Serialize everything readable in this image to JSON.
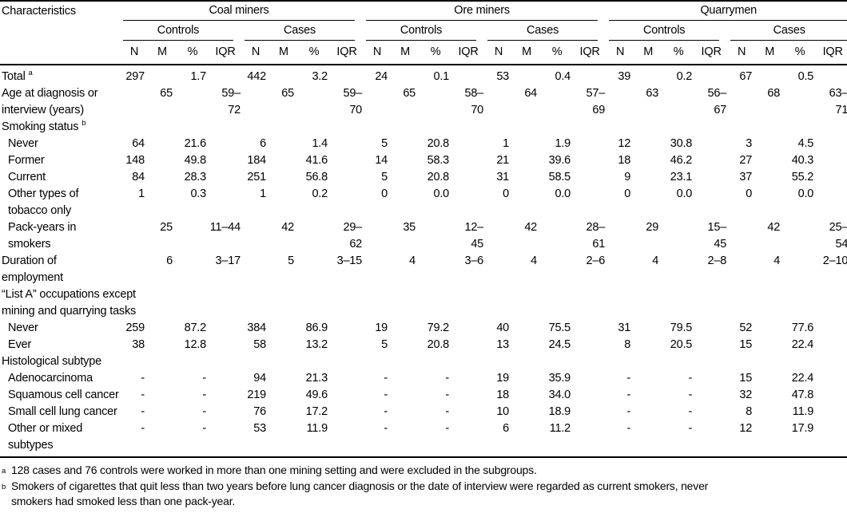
{
  "table": {
    "char_header": "Characteristics",
    "groups": [
      {
        "label": "Coal miners"
      },
      {
        "label": "Ore miners"
      },
      {
        "label": "Quarrymen"
      }
    ],
    "subgroups": [
      "Controls",
      "Cases"
    ],
    "stat_cols": [
      "N",
      "M",
      "%",
      "IQR"
    ],
    "rows": [
      {
        "label": "Total",
        "sup": "a",
        "indent": false,
        "section": false,
        "cells": [
          "297",
          "",
          "1.7",
          "",
          "442",
          "",
          "3.2",
          "",
          "24",
          "",
          "0.1",
          "",
          "53",
          "",
          "0.4",
          "",
          "39",
          "",
          "0.2",
          "",
          "67",
          "",
          "0.5",
          ""
        ]
      },
      {
        "label": "Age at diagnosis or\ninterview (years)",
        "indent": false,
        "section": false,
        "cells": [
          "",
          "65",
          "",
          "59–72",
          "",
          "65",
          "",
          "59–70",
          "",
          "65",
          "",
          "58–70",
          "",
          "64",
          "",
          "57–69",
          "",
          "63",
          "",
          "56–67",
          "",
          "68",
          "",
          "63–71"
        ]
      },
      {
        "label": "Smoking status",
        "sup": "b",
        "indent": false,
        "section": true,
        "cells": []
      },
      {
        "label": "Never",
        "indent": true,
        "section": false,
        "cells": [
          "64",
          "",
          "21.6",
          "",
          "6",
          "",
          "1.4",
          "",
          "5",
          "",
          "20.8",
          "",
          "1",
          "",
          "1.9",
          "",
          "12",
          "",
          "30.8",
          "",
          "3",
          "",
          "4.5",
          ""
        ]
      },
      {
        "label": "Former",
        "indent": true,
        "section": false,
        "cells": [
          "148",
          "",
          "49.8",
          "",
          "184",
          "",
          "41.6",
          "",
          "14",
          "",
          "58.3",
          "",
          "21",
          "",
          "39.6",
          "",
          "18",
          "",
          "46.2",
          "",
          "27",
          "",
          "40.3",
          ""
        ]
      },
      {
        "label": "Current",
        "indent": true,
        "section": false,
        "cells": [
          "84",
          "",
          "28.3",
          "",
          "251",
          "",
          "56.8",
          "",
          "5",
          "",
          "20.8",
          "",
          "31",
          "",
          "58.5",
          "",
          "9",
          "",
          "23.1",
          "",
          "37",
          "",
          "55.2",
          ""
        ]
      },
      {
        "label": "Other types of\ntobacco only",
        "indent": true,
        "section": false,
        "cells": [
          "1",
          "",
          "0.3",
          "",
          "1",
          "",
          "0.2",
          "",
          "0",
          "",
          "0.0",
          "",
          "0",
          "",
          "0.0",
          "",
          "0",
          "",
          "0.0",
          "",
          "0",
          "",
          "0.0",
          ""
        ]
      },
      {
        "label": "Pack-years in\nsmokers",
        "indent": true,
        "section": false,
        "cells": [
          "",
          "25",
          "",
          "11–44",
          "",
          "42",
          "",
          "29–62",
          "",
          "35",
          "",
          "12–45",
          "",
          "42",
          "",
          "28–61",
          "",
          "29",
          "",
          "15–45",
          "",
          "42",
          "",
          "25–54"
        ]
      },
      {
        "label": "Duration of\nemployment",
        "indent": false,
        "section": false,
        "cells": [
          "",
          "6",
          "",
          "3–17",
          "",
          "5",
          "",
          "3–15",
          "",
          "4",
          "",
          "3–6",
          "",
          "4",
          "",
          "2–6",
          "",
          "4",
          "",
          "2–8",
          "",
          "4",
          "",
          "2–10"
        ]
      },
      {
        "label": "“List A” occupations except\nmining and quarrying tasks",
        "indent": false,
        "section": true,
        "cells": []
      },
      {
        "label": "Never",
        "indent": true,
        "section": false,
        "cells": [
          "259",
          "",
          "87.2",
          "",
          "384",
          "",
          "86.9",
          "",
          "19",
          "",
          "79.2",
          "",
          "40",
          "",
          "75.5",
          "",
          "31",
          "",
          "79.5",
          "",
          "52",
          "",
          "77.6",
          ""
        ]
      },
      {
        "label": "Ever",
        "indent": true,
        "section": false,
        "cells": [
          "38",
          "",
          "12.8",
          "",
          "58",
          "",
          "13.2",
          "",
          "5",
          "",
          "20.8",
          "",
          "13",
          "",
          "24.5",
          "",
          "8",
          "",
          "20.5",
          "",
          "15",
          "",
          "22.4",
          ""
        ]
      },
      {
        "label": "Histological subtype",
        "indent": false,
        "section": true,
        "cells": []
      },
      {
        "label": "Adenocarcinoma",
        "indent": true,
        "section": false,
        "cells": [
          "-",
          "",
          "-",
          "",
          "94",
          "",
          "21.3",
          "",
          "-",
          "",
          "-",
          "",
          "19",
          "",
          "35.9",
          "",
          "-",
          "",
          "-",
          "",
          "15",
          "",
          "22.4",
          ""
        ]
      },
      {
        "label": "Squamous cell cancer",
        "indent": true,
        "section": false,
        "cells": [
          "-",
          "",
          "-",
          "",
          "219",
          "",
          "49.6",
          "",
          "-",
          "",
          "-",
          "",
          "18",
          "",
          "34.0",
          "",
          "-",
          "",
          "-",
          "",
          "32",
          "",
          "47.8",
          ""
        ]
      },
      {
        "label": "Small cell lung cancer",
        "indent": true,
        "section": false,
        "cells": [
          "-",
          "",
          "-",
          "",
          "76",
          "",
          "17.2",
          "",
          "-",
          "",
          "-",
          "",
          "10",
          "",
          "18.9",
          "",
          "-",
          "",
          "-",
          "",
          "8",
          "",
          "11.9",
          ""
        ]
      },
      {
        "label": "Other or mixed\nsubtypes",
        "indent": true,
        "section": false,
        "cells": [
          "-",
          "",
          "-",
          "",
          "53",
          "",
          "11.9",
          "",
          "-",
          "",
          "-",
          "",
          "6",
          "",
          "11.2",
          "",
          "-",
          "",
          "-",
          "",
          "12",
          "",
          "17.9",
          ""
        ]
      }
    ],
    "footnotes": [
      {
        "sup": "a",
        "text": "128 cases and 76 controls were worked in more than one mining setting and were excluded in the subgroups."
      },
      {
        "sup": "b",
        "text": "Smokers of cigarettes that quit less than two years before lung cancer diagnosis or the date of interview were regarded as current smokers, never\nsmokers had smoked less than one pack-year."
      }
    ]
  }
}
